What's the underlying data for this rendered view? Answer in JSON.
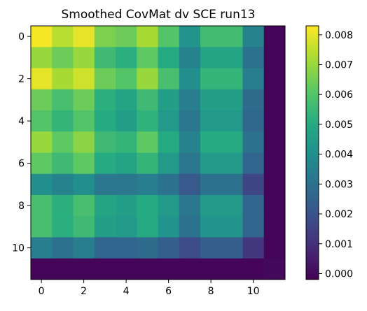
{
  "chart_data": {
    "type": "heatmap",
    "title": "Smoothed CovMat dv SCE run13",
    "xlabel": "",
    "ylabel": "",
    "rows": 12,
    "cols": 12,
    "x_ticks": [
      0,
      2,
      4,
      6,
      8,
      10
    ],
    "y_ticks": [
      0,
      2,
      4,
      6,
      8,
      10
    ],
    "colormap": "viridis",
    "vmin": -0.0002,
    "vmax": 0.0083,
    "colorbar": {
      "ticks": [
        0.0,
        0.001,
        0.002,
        0.003,
        0.004,
        0.005,
        0.006,
        0.007,
        0.008
      ],
      "tick_labels": [
        "0.000",
        "0.001",
        "0.002",
        "0.003",
        "0.004",
        "0.005",
        "0.006",
        "0.007",
        "0.008"
      ]
    },
    "values": [
      [
        0.0082,
        0.0074,
        0.008,
        0.0066,
        0.0064,
        0.0072,
        0.006,
        0.0042,
        0.0057,
        0.0057,
        0.0036,
        -0.0001
      ],
      [
        0.007,
        0.0064,
        0.007,
        0.0056,
        0.0052,
        0.0062,
        0.005,
        0.0036,
        0.0048,
        0.0048,
        0.003,
        -0.0001
      ],
      [
        0.008,
        0.0072,
        0.0077,
        0.0064,
        0.006,
        0.007,
        0.0058,
        0.004,
        0.0054,
        0.0054,
        0.0034,
        -0.0001
      ],
      [
        0.0064,
        0.0058,
        0.0064,
        0.0052,
        0.0048,
        0.0056,
        0.0046,
        0.0034,
        0.0046,
        0.0046,
        0.0028,
        -0.0001
      ],
      [
        0.006,
        0.0054,
        0.006,
        0.005,
        0.0046,
        0.0053,
        0.0044,
        0.0032,
        0.0044,
        0.0044,
        0.0027,
        -0.0001
      ],
      [
        0.007,
        0.0062,
        0.0068,
        0.0056,
        0.0054,
        0.0062,
        0.005,
        0.0036,
        0.005,
        0.005,
        0.003,
        -0.0001
      ],
      [
        0.0062,
        0.0056,
        0.0062,
        0.005,
        0.0048,
        0.0054,
        0.0044,
        0.0032,
        0.0044,
        0.0044,
        0.0026,
        -0.0001
      ],
      [
        0.004,
        0.0036,
        0.004,
        0.0032,
        0.0032,
        0.0034,
        0.003,
        0.0022,
        0.003,
        0.003,
        0.0016,
        -0.0001
      ],
      [
        0.0058,
        0.0052,
        0.0058,
        0.0048,
        0.0046,
        0.005,
        0.0044,
        0.0032,
        0.0044,
        0.0044,
        0.0026,
        -0.0001
      ],
      [
        0.0058,
        0.0052,
        0.0056,
        0.0046,
        0.0044,
        0.005,
        0.0042,
        0.003,
        0.0042,
        0.0042,
        0.0026,
        -0.0001
      ],
      [
        0.0034,
        0.003,
        0.0034,
        0.0026,
        0.0026,
        0.0028,
        0.0024,
        0.0018,
        0.0024,
        0.0024,
        0.0012,
        -0.0001
      ],
      [
        -0.0001,
        -0.0001,
        -0.0001,
        -0.0001,
        -0.0001,
        -0.0001,
        -0.0001,
        -0.0001,
        -0.0001,
        -0.0001,
        -0.0001,
        0.0
      ]
    ]
  }
}
